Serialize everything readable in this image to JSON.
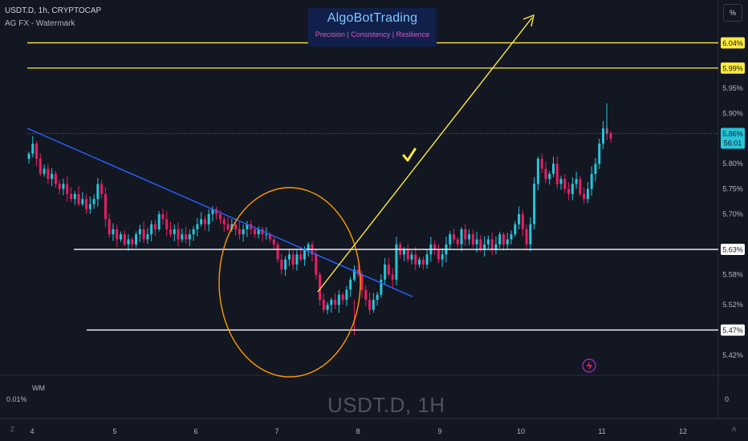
{
  "header": {
    "symbol_line": "USDT.D, 1h, CRYPTOCAP",
    "indicator": "AG FX - Watermark"
  },
  "brand": {
    "title": "AlgoBotTrading",
    "subtitle": "Precision  | Consistency  | Resilience"
  },
  "scale_button": "%",
  "watermark": "USDT.D, 1H",
  "lower_pane": {
    "name": "WM",
    "left_value": "0.01%",
    "right_value": "0"
  },
  "footer": {
    "left_letter": "Z",
    "right_letter": "A"
  },
  "colors": {
    "background": "#131722",
    "up": "#26c6da",
    "down": "#e91e63",
    "trendline": "#2962ff",
    "target_arrow": "#ffeb3b",
    "level_yellow": "#ffeb3b",
    "level_white": "#ffffff",
    "circle": "#ff9800",
    "current_price_tag": "#26c6da"
  },
  "chart_data": {
    "type": "candlestick",
    "x_ticks": [
      "4",
      "5",
      "6",
      "7",
      "8",
      "9",
      "10",
      "11",
      "12"
    ],
    "y_ticks": [
      "5.95%",
      "5.90%",
      "5.80%",
      "5.75%",
      "5.70%",
      "5.58%",
      "5.52%",
      "5.42%"
    ],
    "ylim": [
      5.38,
      6.09
    ],
    "closes": [
      5.82,
      5.84,
      5.81,
      5.78,
      5.79,
      5.77,
      5.78,
      5.76,
      5.75,
      5.76,
      5.74,
      5.73,
      5.74,
      5.72,
      5.73,
      5.71,
      5.72,
      5.73,
      5.76,
      5.74,
      5.69,
      5.66,
      5.67,
      5.65,
      5.66,
      5.64,
      5.65,
      5.64,
      5.66,
      5.67,
      5.65,
      5.66,
      5.68,
      5.67,
      5.7,
      5.69,
      5.67,
      5.66,
      5.67,
      5.65,
      5.66,
      5.65,
      5.66,
      5.67,
      5.68,
      5.69,
      5.68,
      5.7,
      5.71,
      5.7,
      5.69,
      5.68,
      5.67,
      5.68,
      5.67,
      5.66,
      5.67,
      5.68,
      5.67,
      5.66,
      5.67,
      5.66,
      5.66,
      5.65,
      5.64,
      5.61,
      5.59,
      5.61,
      5.62,
      5.6,
      5.62,
      5.61,
      5.63,
      5.64,
      5.62,
      5.58,
      5.53,
      5.51,
      5.52,
      5.53,
      5.52,
      5.54,
      5.53,
      5.55,
      5.57,
      5.59,
      5.58,
      5.55,
      5.53,
      5.51,
      5.53,
      5.54,
      5.57,
      5.6,
      5.58,
      5.57,
      5.64,
      5.62,
      5.63,
      5.61,
      5.62,
      5.6,
      5.61,
      5.6,
      5.62,
      5.64,
      5.63,
      5.61,
      5.62,
      5.64,
      5.66,
      5.65,
      5.64,
      5.67,
      5.65,
      5.66,
      5.64,
      5.65,
      5.63,
      5.64,
      5.65,
      5.63,
      5.64,
      5.66,
      5.64,
      5.65,
      5.66,
      5.68,
      5.7,
      5.67,
      5.64,
      5.68,
      5.76,
      5.81,
      5.79,
      5.77,
      5.78,
      5.8,
      5.76,
      5.77,
      5.75,
      5.74,
      5.76,
      5.77,
      5.74,
      5.73,
      5.75,
      5.78,
      5.8,
      5.84,
      5.87,
      5.86,
      5.85
    ],
    "levels": [
      {
        "label": "6.04%",
        "value": 6.04,
        "color": "yellow"
      },
      {
        "label": "5.99%",
        "value": 5.99,
        "color": "yellow"
      },
      {
        "label": "5.63%",
        "value": 5.63,
        "color": "white"
      },
      {
        "label": "5.47%",
        "value": 5.47,
        "color": "white"
      }
    ],
    "current_price": {
      "label": "5.86%",
      "countdown": "56:01",
      "value": 5.86
    },
    "annotations": [
      "descending blue trendline",
      "orange circle around dip",
      "yellow checkmark",
      "yellow upward arrow"
    ]
  }
}
